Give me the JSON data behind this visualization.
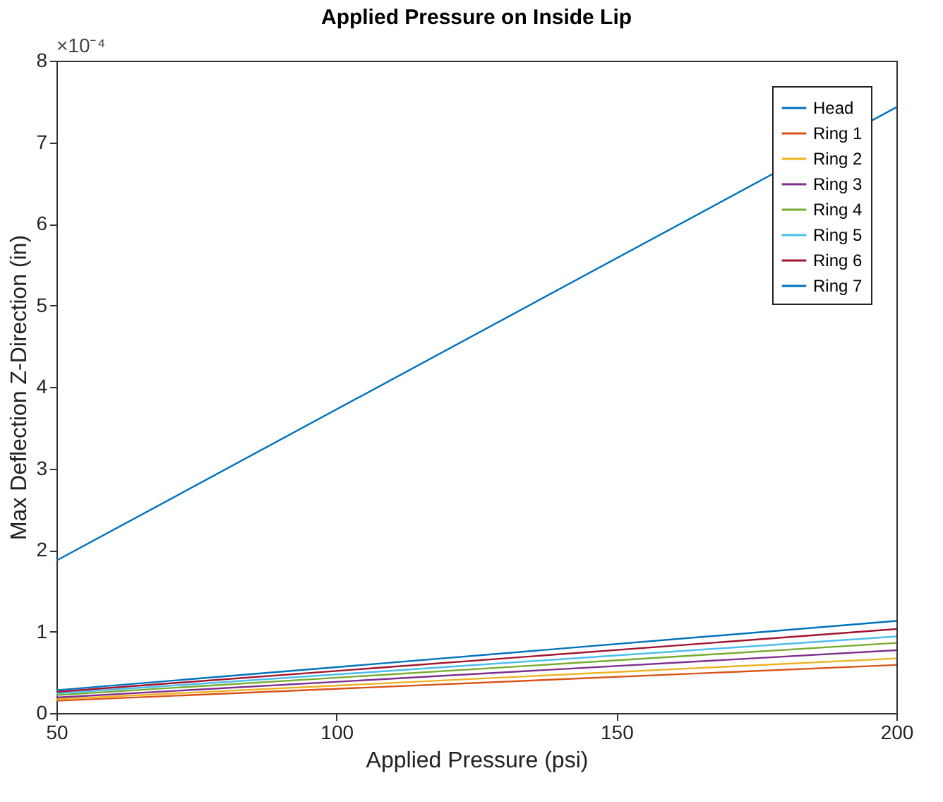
{
  "chart_data": {
    "type": "line",
    "title": "Applied Pressure on Inside Lip",
    "xlabel": "Applied Pressure (psi)",
    "ylabel": "Max Deflection Z-Direction (in)",
    "annotations": [
      "×10⁻⁴"
    ],
    "x": [
      50,
      200
    ],
    "series": [
      {
        "name": "Head",
        "color": "#0072bd",
        "values": [
          1.87,
          7.43
        ]
      },
      {
        "name": "Ring 1",
        "color": "#d95319",
        "values": [
          0.15,
          0.59
        ]
      },
      {
        "name": "Ring 2",
        "color": "#edb120",
        "values": [
          0.17,
          0.67
        ]
      },
      {
        "name": "Ring 3",
        "color": "#7e2f8e",
        "values": [
          0.19,
          0.77
        ]
      },
      {
        "name": "Ring 4",
        "color": "#77ac30",
        "values": [
          0.22,
          0.86
        ]
      },
      {
        "name": "Ring 5",
        "color": "#4dbeee",
        "values": [
          0.24,
          0.94
        ]
      },
      {
        "name": "Ring 6",
        "color": "#a2142f",
        "values": [
          0.26,
          1.03
        ]
      },
      {
        "name": "Ring 7",
        "color": "#0072bd",
        "values": [
          0.28,
          1.13
        ]
      }
    ],
    "xlim": [
      50,
      200
    ],
    "xticks": [
      50,
      100,
      150,
      200
    ],
    "ylim": [
      0,
      8
    ],
    "yticks": [
      0,
      1,
      2,
      3,
      4,
      5,
      6,
      7,
      8
    ],
    "grid": false,
    "legend": "top right",
    "marker": "none",
    "line_style": "solid"
  }
}
